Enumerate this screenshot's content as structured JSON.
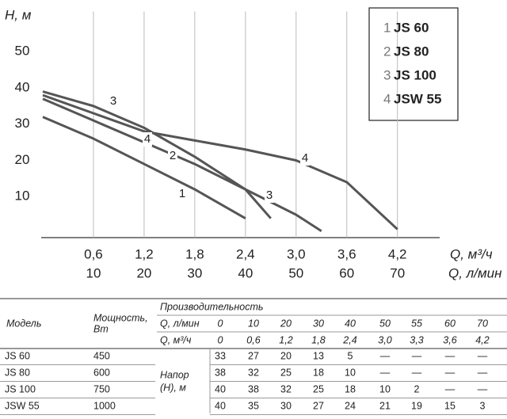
{
  "chart_data": {
    "type": "line",
    "y_label": "Н, м",
    "x_label": "Q, м³/ч",
    "x2_label": "Q, л/мин",
    "xlim": [
      0,
      4.7
    ],
    "x2lim": [
      0,
      78.33
    ],
    "ylim": [
      0,
      60
    ],
    "xticks": [
      {
        "value": 0.6,
        "label": "0,6"
      },
      {
        "value": 1.2,
        "label": "1,2"
      },
      {
        "value": 1.8,
        "label": "1,8"
      },
      {
        "value": 2.4,
        "label": "2,4"
      },
      {
        "value": 3.0,
        "label": "3,0"
      },
      {
        "value": 3.6,
        "label": "3,6"
      },
      {
        "value": 4.2,
        "label": "4,2"
      }
    ],
    "x2ticks": [
      10,
      20,
      30,
      40,
      50,
      60,
      70
    ],
    "yticks": [
      10,
      20,
      30,
      40,
      50
    ],
    "grid": "x",
    "legend": "upper right",
    "series": [
      {
        "label": "1",
        "name": "JS 60",
        "color": "#555555",
        "x": [
          0,
          0.6,
          1.2,
          1.8,
          2.4
        ],
        "values": [
          32,
          26,
          19,
          12,
          4
        ]
      },
      {
        "label": "2",
        "name": "JS 80",
        "color": "#555555",
        "x": [
          0,
          0.6,
          1.2,
          1.8,
          2.4,
          3.0,
          3.3
        ],
        "values": [
          37,
          31,
          25,
          19,
          12,
          5,
          0.5
        ]
      },
      {
        "label": "3",
        "name": "JS 100",
        "color": "#555555",
        "x": [
          0,
          0.6,
          1.2,
          1.8,
          2.4,
          2.7
        ],
        "values": [
          39,
          35,
          29,
          21,
          12,
          4
        ]
      },
      {
        "label": "4",
        "name": "JSW 55",
        "color": "#555555",
        "x": [
          0,
          0.6,
          1.2,
          1.8,
          2.4,
          3.0,
          3.6,
          4.2
        ],
        "values": [
          38,
          33,
          28,
          25.5,
          23,
          20,
          14,
          1
        ]
      }
    ]
  },
  "table": {
    "model": "Модель",
    "power": [
      "Мощность,",
      "Вт"
    ],
    "capacity": "Производительность",
    "flow_lpm_label": "Q, л/мин",
    "flow_lpm": [
      "0",
      "10",
      "20",
      "30",
      "40",
      "50",
      "55",
      "60",
      "70"
    ],
    "flow_m3h_label": "Q, м³/ч",
    "flow_m3h": [
      "0",
      "0,6",
      "1,2",
      "1,8",
      "2,4",
      "3,0",
      "3,3",
      "3,6",
      "4,2"
    ],
    "head_label": [
      "Напор",
      "(Н), м"
    ],
    "rows": [
      {
        "model": "JS 60",
        "power": "450",
        "head": [
          "33",
          "27",
          "20",
          "13",
          "5",
          "—",
          "—",
          "—",
          "—"
        ]
      },
      {
        "model": "JS 80",
        "power": "600",
        "head": [
          "38",
          "32",
          "25",
          "18",
          "10",
          "—",
          "—",
          "—",
          "—"
        ]
      },
      {
        "model": "JS 100",
        "power": "750",
        "head": [
          "40",
          "38",
          "32",
          "25",
          "18",
          "10",
          "2",
          "—",
          "—"
        ]
      },
      {
        "model": "JSW 55",
        "power": "1000",
        "head": [
          "40",
          "35",
          "30",
          "27",
          "24",
          "21",
          "19",
          "15",
          "3"
        ]
      }
    ]
  }
}
